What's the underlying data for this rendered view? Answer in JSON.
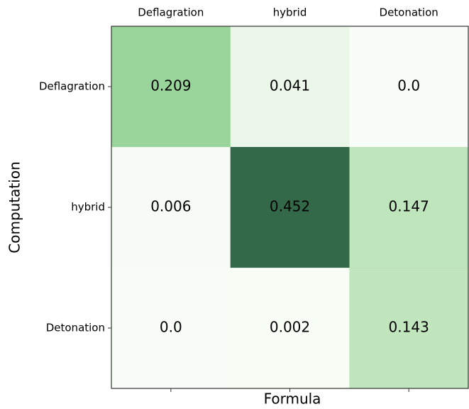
{
  "chart_data": {
    "type": "heatmap",
    "xlabel": "Formula",
    "ylabel": "Computation",
    "x_categories": [
      "Deflagration",
      "hybrid",
      "Detonation"
    ],
    "y_categories": [
      "Deflagration",
      "hybrid",
      "Detonation"
    ],
    "values": [
      [
        0.209,
        0.041,
        0.0
      ],
      [
        0.006,
        0.452,
        0.147
      ],
      [
        0.0,
        0.002,
        0.143
      ]
    ],
    "value_labels": [
      [
        "0.209",
        "0.041",
        "0.0"
      ],
      [
        "0.006",
        "0.452",
        "0.147"
      ],
      [
        "0.0",
        "0.002",
        "0.143"
      ]
    ],
    "colormap": [
      "#f7fcf5",
      "#c7e9c0",
      "#74c476",
      "#238b45",
      "#00441b"
    ],
    "opacity": 0.8
  }
}
